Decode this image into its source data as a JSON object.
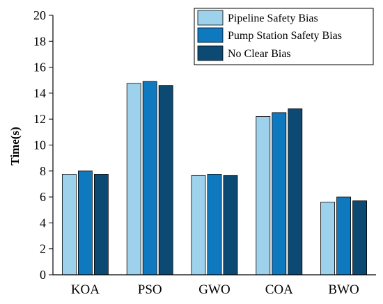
{
  "chart_data": {
    "type": "bar",
    "title": "",
    "xlabel": "",
    "ylabel": "Time(s)",
    "ylim": [
      0,
      20
    ],
    "yticks": [
      0,
      2,
      4,
      6,
      8,
      10,
      12,
      14,
      16,
      18,
      20
    ],
    "grid": false,
    "legend_position": "top-right",
    "categories": [
      "KOA",
      "PSO",
      "GWO",
      "COA",
      "BWO"
    ],
    "series": [
      {
        "name": "Pipeline Safety Bias",
        "color": "#9ed2ec",
        "values": [
          7.75,
          14.75,
          7.65,
          12.2,
          5.6
        ]
      },
      {
        "name": "Pump Station Safety Bias",
        "color": "#0f79c0",
        "values": [
          8.0,
          14.9,
          7.75,
          12.5,
          6.0
        ]
      },
      {
        "name": "No Clear Bias",
        "color": "#0c4a73",
        "values": [
          7.75,
          14.6,
          7.65,
          12.8,
          5.7
        ]
      }
    ]
  }
}
